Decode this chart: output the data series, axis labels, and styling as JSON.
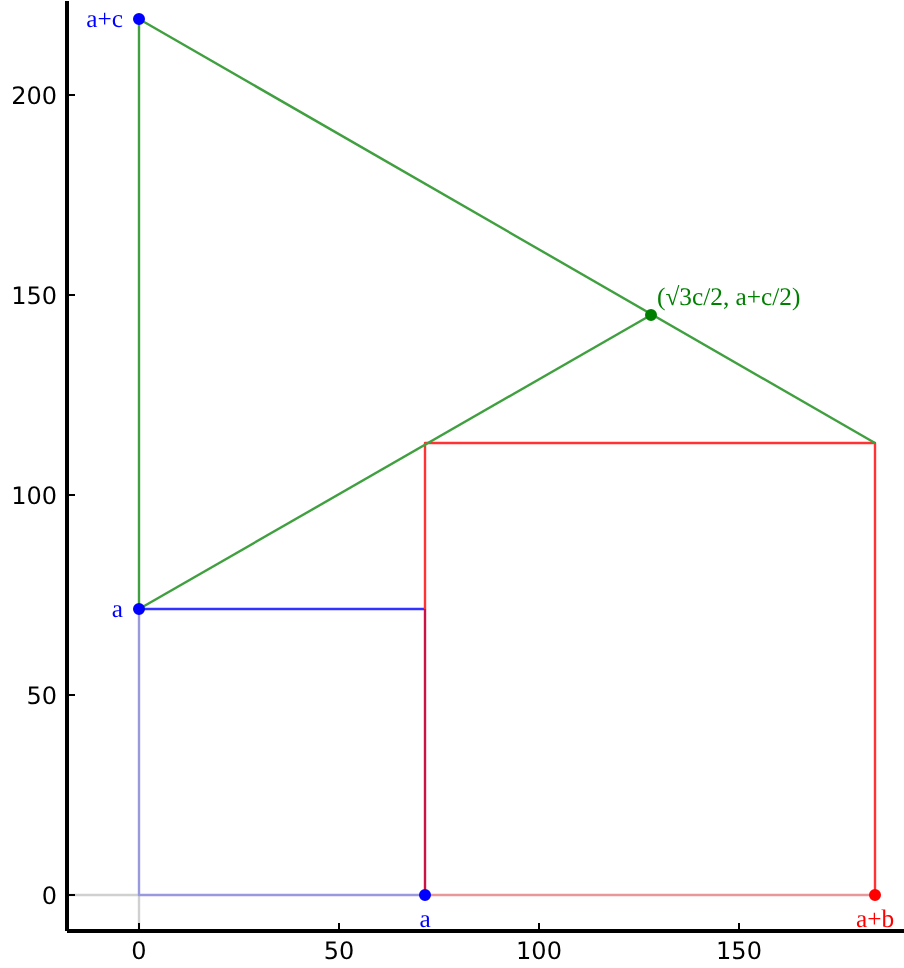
{
  "chart_data": {
    "type": "line",
    "xlim": [
      -18,
      191.5
    ],
    "ylim": [
      -9,
      223.5
    ],
    "xticks": [
      0,
      50,
      100,
      150
    ],
    "yticks": [
      0,
      50,
      100,
      150,
      200
    ],
    "grid": false,
    "line_style": "solid",
    "series": [
      {
        "color": "#d0d0d0",
        "x": [
          -18,
          0,
          0
        ],
        "values": [
          0,
          0,
          -9
        ]
      },
      {
        "color": "#9999dd",
        "x": [
          0,
          0,
          71.5
        ],
        "values": [
          71.5,
          0,
          0
        ]
      },
      {
        "color": "#e89898",
        "x": [
          71.5,
          184
        ],
        "values": [
          0,
          0
        ]
      },
      {
        "color": "#3333ff",
        "x": [
          0,
          71.5
        ],
        "values": [
          71.5,
          71.5
        ]
      },
      {
        "color": "#cc1144",
        "x": [
          71.5,
          71.5
        ],
        "values": [
          0,
          71.5
        ]
      },
      {
        "color": "#ff3333",
        "x": [
          71.5,
          71.5,
          184,
          184
        ],
        "values": [
          71.5,
          113,
          113,
          0
        ]
      },
      {
        "color": "#40a040",
        "x": [
          0,
          0,
          184
        ],
        "values": [
          71.5,
          219,
          113
        ]
      },
      {
        "color": "#40a040",
        "x": [
          0,
          128
        ],
        "values": [
          71.5,
          145
        ]
      },
      {
        "type": "scatter",
        "marker": "circle",
        "color": "#0000ff",
        "x": [
          0,
          0,
          71.5
        ],
        "values": [
          219,
          71.5,
          0
        ],
        "value_labels": [
          "a+c",
          "a",
          "a"
        ]
      },
      {
        "type": "scatter",
        "marker": "circle",
        "color": "#ff0000",
        "x": [
          184
        ],
        "values": [
          0
        ],
        "value_labels": [
          "a+b"
        ]
      },
      {
        "type": "scatter",
        "marker": "circle",
        "color": "#008000",
        "x": [
          128
        ],
        "values": [
          145
        ],
        "value_labels": [
          "(√3c/2, a+c/2)"
        ]
      }
    ]
  }
}
